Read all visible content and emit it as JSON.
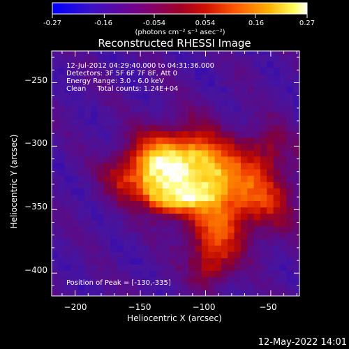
{
  "colorbar": {
    "ticks": [
      "-0.27",
      "-0.16",
      "-0.054",
      "0.054",
      "0.16",
      "0.27"
    ],
    "tick_values": [
      -0.27,
      -0.16,
      -0.054,
      0.054,
      0.16,
      0.27
    ],
    "range": [
      -0.27,
      0.27
    ],
    "units": "(photons cm⁻² s⁻¹ asec⁻²)",
    "colors": [
      "#0000ff",
      "#5a0aa0",
      "#7a0080",
      "#b80014",
      "#ff3000",
      "#ff8a00",
      "#ffd000",
      "#ffffff"
    ]
  },
  "chart_data": {
    "type": "heatmap",
    "title": "Reconstructed RHESSI Image",
    "xlabel": "Heliocentric X (arcsec)",
    "ylabel": "Heliocentric Y (arcsec)",
    "xlim": [
      -218,
      -28
    ],
    "ylim": [
      -418,
      -225
    ],
    "x_ticks": [
      -200,
      -150,
      -100,
      -50
    ],
    "x_tick_labels": [
      "−200",
      "−150",
      "−100",
      "−50"
    ],
    "y_ticks": [
      -250,
      -300,
      -350,
      -400
    ],
    "y_tick_labels": [
      "−250",
      "−300",
      "−350",
      "−400"
    ],
    "info_lines": [
      "12-Jul-2012 04:29:40.000 to 04:31:36.000",
      "Detectors: 3F 5F 6F 7F 8F, Att 0",
      "Energy Range: 3.0 - 6.0 keV",
      "Clean     Total counts: 1.24E+04"
    ],
    "peak_label": "Position of Peak = [-130,-335]",
    "peak_position": [
      -130,
      -335
    ],
    "peak_value": 0.27
  },
  "footer": {
    "timestamp": "12-May-2022 14:01"
  }
}
